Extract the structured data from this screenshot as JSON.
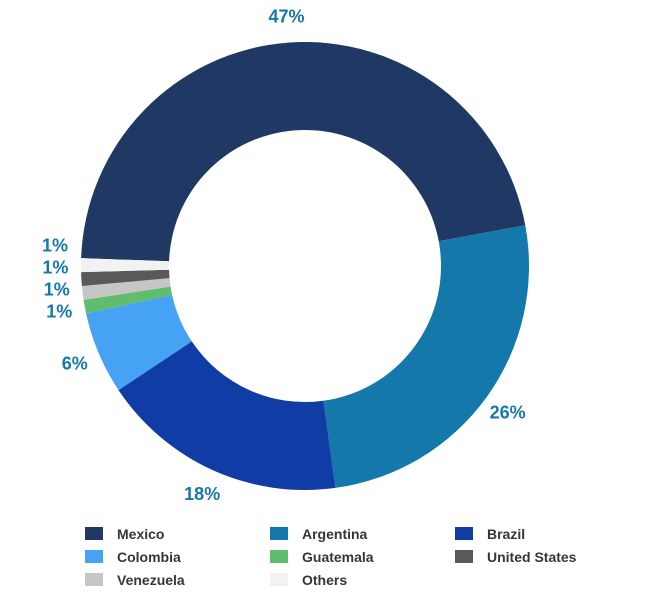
{
  "chart_data": {
    "type": "pie",
    "donut": true,
    "title": "",
    "label_color": "#1578AB",
    "legend_position": "bottom",
    "slices": [
      {
        "label": "Mexico",
        "value": 47,
        "display": "47%",
        "color": "#1F3864"
      },
      {
        "label": "Argentina",
        "value": 26,
        "display": "26%",
        "color": "#1478AB"
      },
      {
        "label": "Brazil",
        "value": 18,
        "display": "18%",
        "color": "#0F3CA5"
      },
      {
        "label": "Colombia",
        "value": 6,
        "display": "6%",
        "color": "#46A2F5"
      },
      {
        "label": "Guatemala",
        "value": 1,
        "display": "1%",
        "color": "#5FBD6D"
      },
      {
        "label": "Venezuela",
        "value": 1,
        "display": "1%",
        "color": "#C6C6C6"
      },
      {
        "label": "United States",
        "value": 1,
        "display": "1%",
        "color": "#595959"
      },
      {
        "label": "Others",
        "value": 1,
        "display": "1%",
        "color": "#F2F2F2"
      }
    ],
    "legend_columns": [
      [
        "Mexico",
        "Colombia",
        "Venezuela"
      ],
      [
        "Argentina",
        "Guatemala",
        "Others"
      ],
      [
        "Brazil",
        "United States"
      ]
    ]
  }
}
